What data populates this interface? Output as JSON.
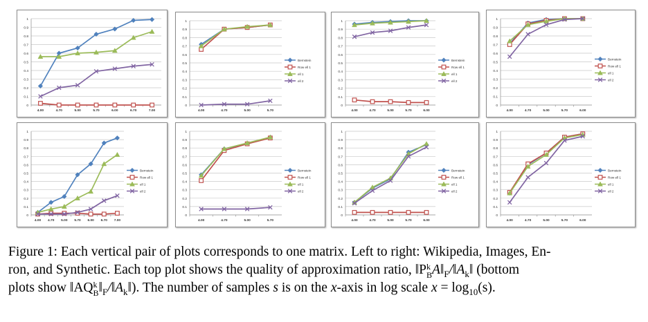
{
  "figure": {
    "caption_lines": [
      {
        "label": "Figure 1:",
        "text": "Each vertical pair of plots corresponds to one matrix. Left to right: Wikipedia, Images, En-"
      },
      {
        "text": "ron, and Synthetic. Each top plot shows the quality of approximation ratio,"
      },
      {
        "pre": "plots show",
        "post": "). The number of samples",
        "post2": "is on the",
        "post3": "-axis in log scale",
        "eq": "= log",
        "end": "(s)."
      }
    ],
    "math": {
      "numer_top": "‖P",
      "sup_k": "k",
      "sub_B": "B",
      "numer_tail": "A‖",
      "sub_F": "F",
      "slash": "/‖A",
      "sub_k": "k",
      "close": "‖",
      "bottom_open": "(bottom",
      "aq": "‖AQ",
      "s": "s",
      "x": "x",
      "ten": "10"
    }
  },
  "legend_labels": [
    "Bernstein",
    "Row ell 1",
    "ell 1",
    "ell 2"
  ],
  "series_colors": [
    "#4f81bd",
    "#c0504d",
    "#9bbb59",
    "#8064a2"
  ],
  "chart_data": [
    {
      "type": "line",
      "panel": "top-1",
      "x": [
        "4.00",
        "4.70",
        "5.00",
        "5.70",
        "6.00",
        "6.70",
        "7.00"
      ],
      "yticks": [
        "0",
        "0.1",
        "0.2",
        "0.3",
        "0.4",
        "0.5",
        "0.6",
        "0.7",
        "0.8",
        "0.9",
        "1"
      ],
      "ylim": [
        0,
        1
      ],
      "grid": true,
      "legend": "none",
      "series": [
        {
          "values": [
            0.22,
            0.6,
            0.66,
            0.82,
            0.88,
            0.98,
            0.99
          ]
        },
        {
          "values": [
            0.02,
            0.0,
            0.0,
            0.0,
            0.0,
            0.0,
            0.0
          ]
        },
        {
          "values": [
            0.56,
            0.56,
            0.6,
            0.61,
            0.63,
            0.78,
            0.85
          ]
        },
        {
          "values": [
            0.1,
            0.2,
            0.23,
            0.39,
            0.42,
            0.45,
            0.47
          ]
        }
      ]
    },
    {
      "type": "line",
      "panel": "top-2",
      "x": [
        "4.00",
        "4.70",
        "5.00",
        "5.70"
      ],
      "yticks": [
        "0",
        "0.1",
        "0.2",
        "0.3",
        "0.4",
        "0.5",
        "0.6",
        "0.7",
        "0.8",
        "0.9",
        "1"
      ],
      "ylim": [
        0,
        1
      ],
      "grid": true,
      "legend": "right",
      "series": [
        {
          "values": [
            0.72,
            0.9,
            0.92,
            0.95
          ]
        },
        {
          "values": [
            0.66,
            0.9,
            0.92,
            0.95
          ]
        },
        {
          "values": [
            0.7,
            0.9,
            0.93,
            0.95
          ]
        },
        {
          "values": [
            0.0,
            0.01,
            0.01,
            0.05
          ]
        }
      ]
    },
    {
      "type": "line",
      "panel": "top-3",
      "x": [
        "4.00",
        "4.70",
        "5.00",
        "5.70",
        "6.00"
      ],
      "yticks": [
        "0",
        "0.1",
        "0.2",
        "0.3",
        "0.4",
        "0.5",
        "0.6",
        "0.7",
        "0.8",
        "0.9",
        "1"
      ],
      "ylim": [
        0,
        1
      ],
      "grid": true,
      "legend": "right",
      "series": [
        {
          "values": [
            0.96,
            0.98,
            0.99,
            1.0,
            1.0
          ]
        },
        {
          "values": [
            0.06,
            0.04,
            0.04,
            0.03,
            0.03
          ]
        },
        {
          "values": [
            0.95,
            0.97,
            0.98,
            0.99,
            1.0
          ]
        },
        {
          "values": [
            0.81,
            0.86,
            0.88,
            0.92,
            0.95
          ]
        }
      ]
    },
    {
      "type": "line",
      "panel": "top-4",
      "x": [
        "4.00",
        "4.70",
        "5.00",
        "5.70",
        "6.00"
      ],
      "yticks": [
        "0",
        "0.1",
        "0.2",
        "0.3",
        "0.4",
        "0.5",
        "0.6",
        "0.7",
        "0.8",
        "0.9",
        "1"
      ],
      "ylim": [
        0,
        1
      ],
      "grid": true,
      "legend": "right",
      "series": [
        {
          "values": [
            0.71,
            0.95,
            0.99,
            1.0,
            1.0
          ]
        },
        {
          "values": [
            0.7,
            0.94,
            0.98,
            1.0,
            1.0
          ]
        },
        {
          "values": [
            0.74,
            0.93,
            0.97,
            1.0,
            1.0
          ]
        },
        {
          "values": [
            0.56,
            0.82,
            0.93,
            0.99,
            1.0
          ]
        }
      ]
    },
    {
      "type": "line",
      "panel": "bottom-1",
      "x": [
        "4.00",
        "4.70",
        "5.00",
        "5.70",
        "6.00",
        "6.70",
        "7.00"
      ],
      "yticks": [
        "0",
        "0.1",
        "0.2",
        "0.3",
        "0.4",
        "0.5",
        "0.6",
        "0.7",
        "0.8",
        "0.9",
        "1"
      ],
      "ylim": [
        0,
        1
      ],
      "grid": true,
      "legend": "right",
      "series": [
        {
          "values": [
            0.03,
            0.15,
            0.22,
            0.48,
            0.61,
            0.86,
            0.92
          ]
        },
        {
          "values": [
            0.01,
            0.02,
            0.02,
            0.02,
            0.01,
            0.01,
            0.02
          ]
        },
        {
          "values": [
            0.03,
            0.07,
            0.1,
            0.2,
            0.28,
            0.61,
            0.72
          ]
        },
        {
          "values": [
            0.01,
            0.01,
            0.01,
            0.03,
            0.07,
            0.17,
            0.23
          ]
        }
      ]
    },
    {
      "type": "line",
      "panel": "bottom-2",
      "x": [
        "4.00",
        "4.70",
        "5.00",
        "5.70"
      ],
      "yticks": [
        "0",
        "0.1",
        "0.2",
        "0.3",
        "0.4",
        "0.5",
        "0.6",
        "0.7",
        "0.8",
        "0.9",
        "1"
      ],
      "ylim": [
        0,
        1
      ],
      "grid": true,
      "legend": "right",
      "series": [
        {
          "values": [
            0.48,
            0.79,
            0.85,
            0.93
          ]
        },
        {
          "values": [
            0.41,
            0.77,
            0.85,
            0.92
          ]
        },
        {
          "values": [
            0.47,
            0.79,
            0.86,
            0.93
          ]
        },
        {
          "values": [
            0.07,
            0.07,
            0.07,
            0.09
          ]
        }
      ]
    },
    {
      "type": "line",
      "panel": "bottom-3",
      "x": [
        "4.00",
        "4.70",
        "5.00",
        "5.70",
        "6.00"
      ],
      "yticks": [
        "0",
        "0.1",
        "0.2",
        "0.3",
        "0.4",
        "0.5",
        "0.6",
        "0.7",
        "0.8",
        "0.9",
        "1"
      ],
      "ylim": [
        0,
        1
      ],
      "grid": true,
      "legend": "right",
      "series": [
        {
          "values": [
            0.15,
            0.32,
            0.43,
            0.75,
            0.84
          ]
        },
        {
          "values": [
            0.03,
            0.03,
            0.03,
            0.03,
            0.03
          ]
        },
        {
          "values": [
            0.15,
            0.33,
            0.44,
            0.73,
            0.85
          ]
        },
        {
          "values": [
            0.14,
            0.29,
            0.41,
            0.7,
            0.81
          ]
        }
      ]
    },
    {
      "type": "line",
      "panel": "bottom-4",
      "x": [
        "4.00",
        "4.70",
        "5.00",
        "5.70",
        "6.00"
      ],
      "yticks": [
        "0",
        "0.1",
        "0.2",
        "0.3",
        "0.4",
        "0.5",
        "0.6",
        "0.7",
        "0.8",
        "0.9",
        "1"
      ],
      "ylim": [
        0,
        1
      ],
      "grid": true,
      "legend": "right",
      "series": [
        {
          "values": [
            0.26,
            0.6,
            0.74,
            0.93,
            0.97
          ]
        },
        {
          "values": [
            0.27,
            0.61,
            0.74,
            0.93,
            0.97
          ]
        },
        {
          "values": [
            0.26,
            0.58,
            0.72,
            0.92,
            0.96
          ]
        },
        {
          "values": [
            0.15,
            0.45,
            0.62,
            0.89,
            0.94
          ]
        }
      ]
    }
  ]
}
